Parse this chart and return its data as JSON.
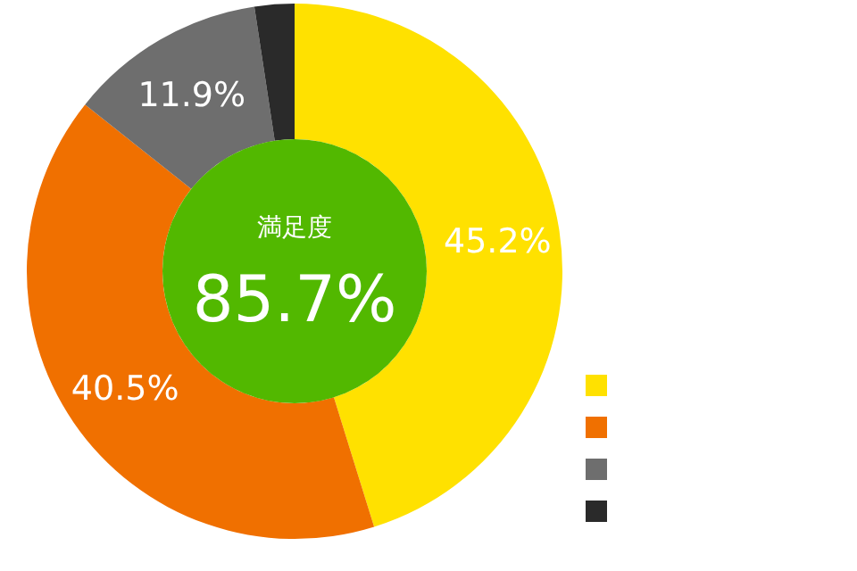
{
  "chart_data": {
    "type": "donut",
    "categories": [
      null,
      null,
      null,
      null
    ],
    "values": [
      45.2,
      40.5,
      11.9,
      2.4
    ],
    "value_labels": [
      "45.2%",
      "40.5%",
      "11.9%",
      null
    ],
    "colors": [
      "#ffe100",
      "#f07000",
      "#6e6e6e",
      "#2a2a2a"
    ],
    "annotations": [
      "満足度",
      "85.7%"
    ]
  }
}
